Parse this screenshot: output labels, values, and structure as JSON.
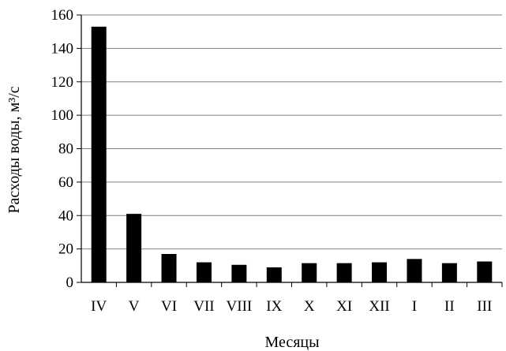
{
  "chart_data": {
    "type": "bar",
    "title": "",
    "xlabel": "Месяцы",
    "ylabel": "Расходы воды, м³/с",
    "ylim": [
      0,
      160
    ],
    "ytick_step": 20,
    "yticks": [
      "0",
      "20",
      "40",
      "60",
      "80",
      "100",
      "120",
      "140",
      "160"
    ],
    "grid": true,
    "legend": "none",
    "categories": [
      "IV",
      "V",
      "VI",
      "VII",
      "VIII",
      "IX",
      "X",
      "XI",
      "XII",
      "I",
      "II",
      "III"
    ],
    "values": [
      153,
      41,
      17,
      12,
      10.5,
      9,
      11.5,
      11.5,
      12,
      14,
      11.5,
      12.5
    ],
    "colors": {
      "bar": "#000000",
      "grid": "#7f7f7f",
      "axis": "#000000"
    }
  }
}
